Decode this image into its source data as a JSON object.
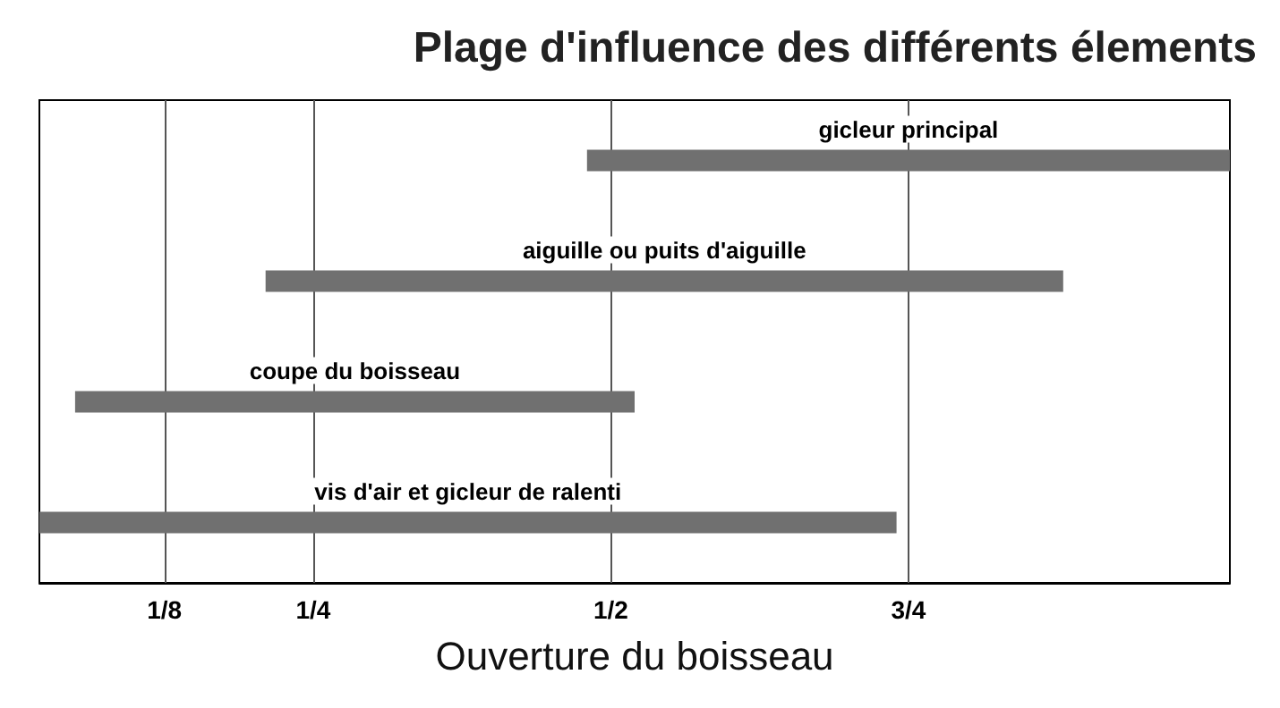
{
  "chart_data": {
    "type": "bar",
    "orientation": "horizontal",
    "title": "Plage d'influence des différents élements",
    "xlabel": "Ouverture du boisseau",
    "categories": [
      "gicleur principal",
      "aiguille ou puits d'aiguille",
      "coupe du boisseau",
      "vis d'air et gicleur de ralenti"
    ],
    "base": [
      0.48,
      0.21,
      0.05,
      0.02
    ],
    "values": [
      0.54,
      0.67,
      0.47,
      0.72
    ],
    "color": "#707070",
    "xlim": [
      0.02,
      1.02
    ],
    "xticks": [
      {
        "value": 0.125,
        "label": "1/8"
      },
      {
        "value": 0.25,
        "label": "1/4"
      },
      {
        "value": 0.5,
        "label": "1/2"
      },
      {
        "value": 0.75,
        "label": "3/4"
      }
    ],
    "grid": "x",
    "tick_labels": "x"
  }
}
